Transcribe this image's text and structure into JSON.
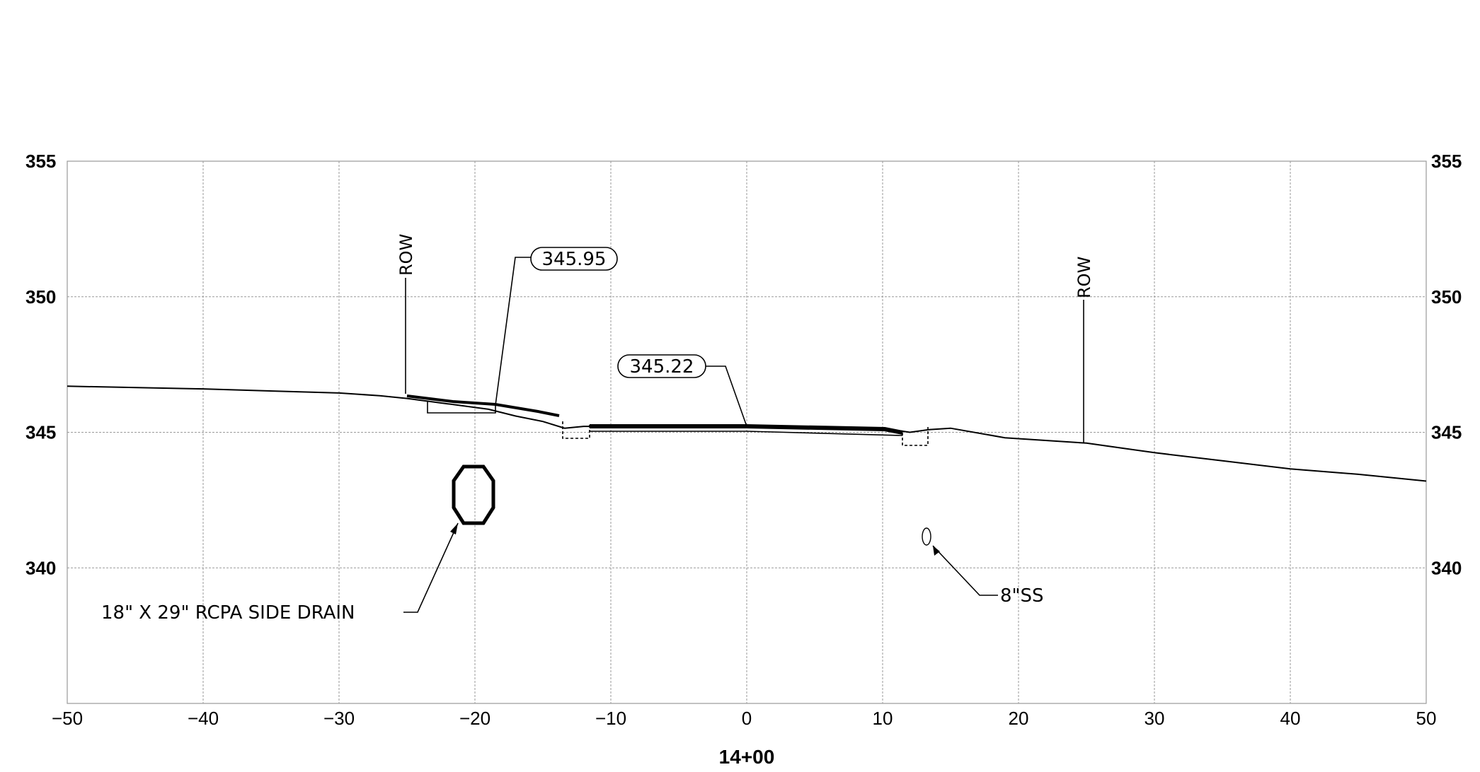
{
  "station": "14+00",
  "x_axis": {
    "ticks": [
      "−50",
      "−40",
      "−30",
      "−20",
      "−10",
      "0",
      "10",
      "20",
      "30",
      "40",
      "50"
    ]
  },
  "y_axis": {
    "ticks": [
      "355",
      "350",
      "345",
      "340"
    ]
  },
  "chart_data": {
    "type": "line",
    "xlim": [
      -50,
      50
    ],
    "ylim": [
      335,
      355
    ],
    "grid": true,
    "series": [
      {
        "x": [
          -50,
          -40,
          -30,
          -27,
          -25,
          -22,
          -19,
          -17,
          -15,
          -13.4,
          -12,
          0,
          10,
          12,
          13.4,
          15,
          19,
          25,
          30,
          35,
          40,
          45,
          50
        ],
        "y": [
          346.7,
          346.6,
          346.45,
          346.35,
          346.25,
          346.05,
          345.85,
          345.6,
          345.4,
          345.15,
          345.22,
          345.22,
          345.15,
          345.0,
          345.1,
          345.15,
          344.8,
          344.6,
          344.25,
          343.95,
          343.65,
          343.45,
          343.2
        ]
      }
    ],
    "elevation_callouts": [
      {
        "label": "345.95"
      },
      {
        "label": "345.22"
      }
    ],
    "annotations": [
      {
        "text": "ROW",
        "x": -25
      },
      {
        "text": "ROW",
        "x": 25
      },
      {
        "text": "18\" X 29\" RCPA SIDE DRAIN",
        "x": -20,
        "y": 342.7
      },
      {
        "text": "8\"SS",
        "x": 13.3,
        "y": 341.1
      }
    ]
  }
}
